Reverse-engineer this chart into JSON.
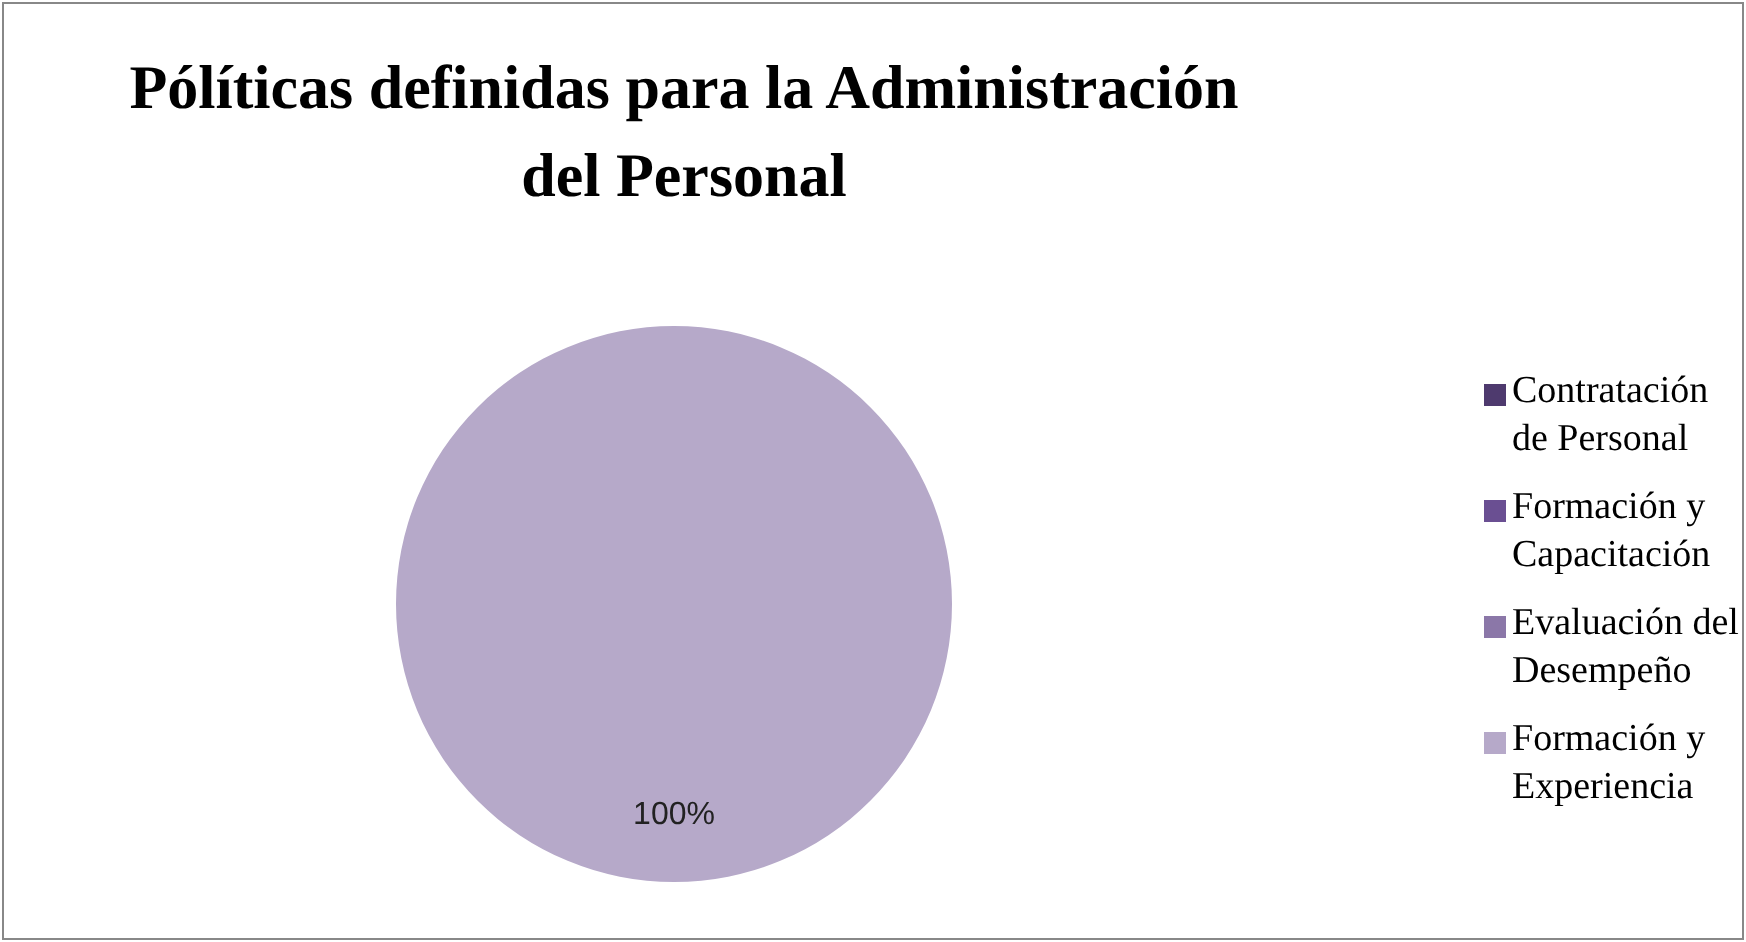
{
  "chart_data": {
    "type": "pie",
    "title": "Pólíticas definidas para la Administración del Personal",
    "categories": [
      "Contratación de Personal",
      "Formación y Capacitación",
      "Evaluación del Desempeño",
      "Formación y Experiencia"
    ],
    "values": [
      0,
      0,
      0,
      100
    ],
    "colors": [
      "#4e3a6e",
      "#6a4f92",
      "#8b77a8",
      "#b6a9c9"
    ],
    "value_labels": [
      null,
      null,
      null,
      "100%"
    ],
    "legend": "right"
  }
}
